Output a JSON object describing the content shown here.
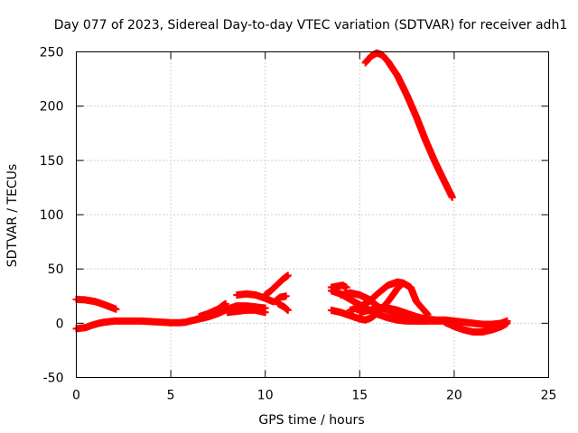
{
  "chart_data": {
    "type": "scatter",
    "title": "Day 077 of 2023, Sidereal Day-to-day VTEC variation (SDTVAR) for receiver adh1",
    "xlabel": "GPS time / hours",
    "ylabel": "SDTVAR / TECUs",
    "xlim": [
      0,
      25
    ],
    "ylim": [
      -50,
      250
    ],
    "xticks": [
      0,
      5,
      10,
      15,
      20,
      25
    ],
    "yticks": [
      -50,
      0,
      50,
      100,
      150,
      200,
      250
    ],
    "grid": true,
    "marker": "plus",
    "color": "#ff0000",
    "segments": [
      {
        "name": "arc-a",
        "points": [
          [
            0.0,
            22
          ],
          [
            0.5,
            21.5
          ],
          [
            1.0,
            20
          ],
          [
            1.5,
            17
          ],
          [
            2.1,
            13
          ]
        ]
      },
      {
        "name": "arc-b",
        "points": [
          [
            0.0,
            -5
          ],
          [
            0.5,
            -4
          ],
          [
            0.8,
            -2
          ],
          [
            1.2,
            0
          ],
          [
            1.5,
            1
          ],
          [
            2.0,
            2
          ],
          [
            2.5,
            2
          ],
          [
            3.0,
            2
          ],
          [
            3.5,
            2
          ],
          [
            4.0,
            1.5
          ],
          [
            4.5,
            1
          ],
          [
            5.0,
            0.5
          ],
          [
            5.5,
            0.5
          ],
          [
            5.8,
            1
          ],
          [
            6.0,
            2
          ],
          [
            6.5,
            4
          ],
          [
            7.0,
            6
          ],
          [
            7.5,
            9
          ],
          [
            8.0,
            13
          ],
          [
            8.5,
            16
          ],
          [
            9.0,
            16
          ],
          [
            9.5,
            15
          ],
          [
            10.0,
            14
          ]
        ]
      },
      {
        "name": "arc-c",
        "points": [
          [
            6.5,
            6
          ],
          [
            7.0,
            9
          ],
          [
            7.5,
            13
          ],
          [
            7.9,
            18
          ]
        ]
      },
      {
        "name": "arc-d",
        "points": [
          [
            8.5,
            26
          ],
          [
            9.0,
            27
          ],
          [
            9.5,
            26
          ],
          [
            10.0,
            23
          ],
          [
            10.4,
            20
          ]
        ]
      },
      {
        "name": "arc-e",
        "points": [
          [
            8.0,
            10
          ],
          [
            8.5,
            11
          ],
          [
            9.0,
            12
          ],
          [
            9.5,
            12
          ],
          [
            10.0,
            10
          ]
        ]
      },
      {
        "name": "arc-f",
        "points": [
          [
            10.0,
            26
          ],
          [
            10.3,
            30
          ],
          [
            10.6,
            35
          ],
          [
            10.9,
            40
          ],
          [
            11.2,
            44
          ]
        ]
      },
      {
        "name": "arc-g",
        "points": [
          [
            10.5,
            20
          ],
          [
            10.8,
            24
          ],
          [
            11.1,
            25
          ]
        ]
      },
      {
        "name": "arc-h",
        "points": [
          [
            10.7,
            18
          ],
          [
            11.0,
            15
          ],
          [
            11.2,
            12
          ]
        ]
      },
      {
        "name": "arc-i",
        "points": [
          [
            13.5,
            33
          ],
          [
            13.8,
            34
          ],
          [
            14.1,
            35
          ],
          [
            14.3,
            33
          ]
        ]
      },
      {
        "name": "arc-j",
        "points": [
          [
            13.5,
            30
          ],
          [
            14.0,
            27
          ],
          [
            14.5,
            22
          ],
          [
            15.0,
            17
          ],
          [
            15.5,
            12
          ],
          [
            16.0,
            8
          ],
          [
            16.5,
            5
          ],
          [
            17.0,
            3
          ],
          [
            17.5,
            2
          ],
          [
            18.0,
            2
          ],
          [
            18.5,
            2
          ],
          [
            19.0,
            2
          ],
          [
            19.5,
            2
          ],
          [
            20.0,
            2
          ],
          [
            20.5,
            1
          ],
          [
            21.0,
            0
          ],
          [
            21.5,
            -1
          ],
          [
            22.0,
            -1
          ],
          [
            22.5,
            0
          ],
          [
            22.8,
            2
          ]
        ]
      },
      {
        "name": "arc-k",
        "points": [
          [
            13.5,
            12
          ],
          [
            14.0,
            10
          ],
          [
            14.5,
            7
          ],
          [
            15.0,
            4
          ],
          [
            15.3,
            3
          ],
          [
            15.6,
            5
          ],
          [
            16.0,
            10
          ],
          [
            16.5,
            20
          ],
          [
            17.0,
            32
          ],
          [
            17.3,
            37
          ],
          [
            17.7,
            33
          ],
          [
            18.0,
            20
          ],
          [
            18.3,
            14
          ],
          [
            18.6,
            8
          ]
        ]
      },
      {
        "name": "arc-l",
        "points": [
          [
            14.0,
            26
          ],
          [
            14.5,
            28
          ],
          [
            15.0,
            26
          ],
          [
            15.5,
            22
          ],
          [
            16.0,
            15
          ],
          [
            16.5,
            12
          ],
          [
            17.0,
            8
          ],
          [
            17.5,
            4
          ],
          [
            18.0,
            2
          ],
          [
            18.5,
            2
          ]
        ]
      },
      {
        "name": "arc-m",
        "points": [
          [
            14.5,
            12
          ],
          [
            15.0,
            15
          ],
          [
            15.5,
            20
          ],
          [
            16.0,
            28
          ],
          [
            16.5,
            35
          ],
          [
            17.0,
            38
          ],
          [
            17.3,
            37
          ]
        ]
      },
      {
        "name": "arc-n",
        "points": [
          [
            15.0,
            10
          ],
          [
            15.5,
            12
          ],
          [
            16.0,
            14
          ],
          [
            16.5,
            14
          ],
          [
            17.0,
            12
          ],
          [
            17.5,
            9
          ],
          [
            18.0,
            6
          ],
          [
            18.5,
            4
          ],
          [
            19.0,
            3
          ],
          [
            19.5,
            3
          ],
          [
            20.0,
            2
          ]
        ]
      },
      {
        "name": "arc-o",
        "points": [
          [
            19.5,
            1
          ],
          [
            20.0,
            -3
          ],
          [
            20.5,
            -6
          ],
          [
            21.0,
            -8
          ],
          [
            21.5,
            -8
          ],
          [
            22.0,
            -6
          ],
          [
            22.5,
            -3
          ],
          [
            22.8,
            0
          ]
        ]
      },
      {
        "name": "arc-p",
        "points": [
          [
            15.3,
            240
          ],
          [
            15.6,
            246
          ],
          [
            15.9,
            249
          ],
          [
            16.2,
            247
          ],
          [
            16.5,
            241
          ],
          [
            17.0,
            228
          ],
          [
            17.5,
            210
          ],
          [
            18.0,
            190
          ],
          [
            18.5,
            168
          ],
          [
            19.0,
            148
          ],
          [
            19.5,
            130
          ],
          [
            19.9,
            116
          ]
        ]
      }
    ]
  }
}
